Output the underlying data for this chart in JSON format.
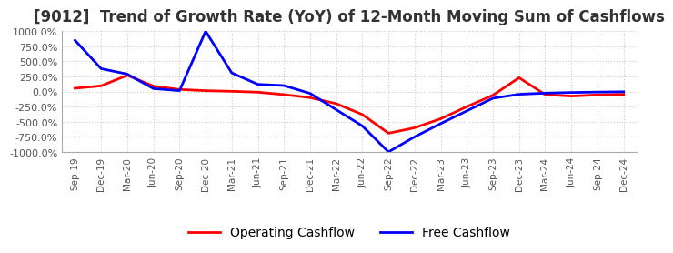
{
  "title": "[9012]  Trend of Growth Rate (YoY) of 12-Month Moving Sum of Cashflows",
  "title_fontsize": 12,
  "ylim": [
    -1000,
    1000
  ],
  "yticks": [
    1000.0,
    750.0,
    500.0,
    250.0,
    0.0,
    -250.0,
    -500.0,
    -750.0,
    -1000.0
  ],
  "background_color": "#ffffff",
  "grid_color": "#cccccc",
  "legend_entries": [
    "Operating Cashflow",
    "Free Cashflow"
  ],
  "legend_colors": [
    "#ff0000",
    "#0000ff"
  ],
  "x_labels": [
    "Sep-19",
    "Dec-19",
    "Mar-20",
    "Jun-20",
    "Sep-20",
    "Dec-20",
    "Mar-21",
    "Jun-21",
    "Sep-21",
    "Dec-21",
    "Mar-22",
    "Jun-22",
    "Sep-22",
    "Dec-22",
    "Mar-23",
    "Jun-23",
    "Sep-23",
    "Dec-23",
    "Mar-24",
    "Jun-24",
    "Sep-24",
    "Dec-24"
  ],
  "operating_cashflow": [
    55,
    95,
    270,
    90,
    35,
    15,
    5,
    -10,
    -50,
    -100,
    -200,
    -380,
    -690,
    -600,
    -450,
    -250,
    -60,
    230,
    -50,
    -75,
    -55,
    -45
  ],
  "free_cashflow": [
    850,
    380,
    290,
    50,
    15,
    1000,
    310,
    120,
    100,
    -30,
    -300,
    -570,
    -1000,
    -750,
    -530,
    -320,
    -110,
    -45,
    -25,
    -15,
    -8,
    -3
  ]
}
